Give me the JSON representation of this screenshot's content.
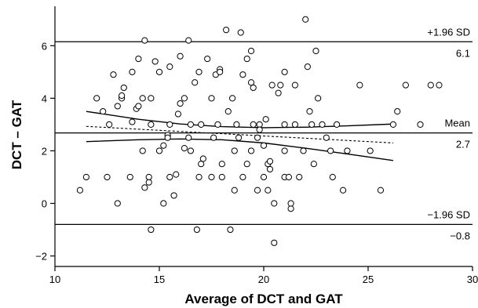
{
  "chart_data": {
    "type": "scatter",
    "title": "",
    "xlabel": "Average of DCT and GAT",
    "ylabel": "DCT – GAT",
    "xlim": [
      10,
      30
    ],
    "ylim": [
      -2.4,
      7.5
    ],
    "xticks": [
      10,
      15,
      20,
      25,
      30
    ],
    "yticks": [
      -2,
      0,
      2,
      4,
      6
    ],
    "grid": false,
    "reference_lines": [
      {
        "name": "+1.96 SD",
        "label_above": "+1.96 SD",
        "label_below": "6.1",
        "y": 6.15
      },
      {
        "name": "Mean",
        "label_above": "Mean",
        "label_below": "2.7",
        "y": 2.68
      },
      {
        "name": "-1.96 SD",
        "label_above": "−1.96 SD",
        "label_below": "−0.8",
        "y": -0.8
      }
    ],
    "regression_line": {
      "x": [
        11.5,
        26.2
      ],
      "y": [
        2.93,
        2.3
      ]
    },
    "confidence_band": {
      "upper": {
        "x": [
          11.5,
          14,
          16,
          18,
          20,
          22,
          24,
          26.2
        ],
        "y": [
          3.5,
          3.2,
          3.02,
          2.92,
          2.88,
          2.9,
          2.95,
          3.02
        ]
      },
      "lower": {
        "x": [
          11.5,
          14,
          16,
          18,
          20,
          22,
          24,
          26.2
        ],
        "y": [
          2.35,
          2.42,
          2.45,
          2.42,
          2.3,
          2.1,
          1.88,
          1.63
        ]
      }
    },
    "points": [
      {
        "x": 11.2,
        "y": 0.5
      },
      {
        "x": 11.5,
        "y": 1.0
      },
      {
        "x": 12.0,
        "y": 4.0
      },
      {
        "x": 12.3,
        "y": 3.5
      },
      {
        "x": 12.5,
        "y": 1.0
      },
      {
        "x": 12.6,
        "y": 3.0
      },
      {
        "x": 12.8,
        "y": 4.9
      },
      {
        "x": 13.0,
        "y": 3.7
      },
      {
        "x": 13.0,
        "y": 0.0
      },
      {
        "x": 13.2,
        "y": 4.0
      },
      {
        "x": 13.2,
        "y": 4.1
      },
      {
        "x": 13.3,
        "y": 4.4
      },
      {
        "x": 13.6,
        "y": 1.0
      },
      {
        "x": 13.7,
        "y": 5.0
      },
      {
        "x": 13.7,
        "y": 3.1
      },
      {
        "x": 13.9,
        "y": 3.6
      },
      {
        "x": 14.0,
        "y": 5.5
      },
      {
        "x": 14.0,
        "y": 3.7
      },
      {
        "x": 14.2,
        "y": 2.0
      },
      {
        "x": 14.2,
        "y": 4.0
      },
      {
        "x": 14.3,
        "y": 6.2
      },
      {
        "x": 14.3,
        "y": 0.6
      },
      {
        "x": 14.5,
        "y": 1.0
      },
      {
        "x": 14.5,
        "y": 0.8
      },
      {
        "x": 14.6,
        "y": 3.0
      },
      {
        "x": 14.6,
        "y": 4.0
      },
      {
        "x": 14.6,
        "y": -1.0
      },
      {
        "x": 14.8,
        "y": 5.4
      },
      {
        "x": 15.0,
        "y": 5.0
      },
      {
        "x": 15.0,
        "y": 2.0
      },
      {
        "x": 15.2,
        "y": 0.0
      },
      {
        "x": 15.2,
        "y": 2.2
      },
      {
        "x": 15.4,
        "y": 2.6
      },
      {
        "x": 15.4,
        "y": 2.5
      },
      {
        "x": 15.5,
        "y": 5.2
      },
      {
        "x": 15.5,
        "y": 3.0
      },
      {
        "x": 15.5,
        "y": 1.0
      },
      {
        "x": 15.7,
        "y": 0.3
      },
      {
        "x": 15.8,
        "y": 1.1
      },
      {
        "x": 15.9,
        "y": 3.4
      },
      {
        "x": 16.0,
        "y": 3.8
      },
      {
        "x": 16.0,
        "y": 5.6
      },
      {
        "x": 16.2,
        "y": 4.0
      },
      {
        "x": 16.2,
        "y": 2.1
      },
      {
        "x": 16.4,
        "y": 6.2
      },
      {
        "x": 16.4,
        "y": 2.5
      },
      {
        "x": 16.5,
        "y": 3.0
      },
      {
        "x": 16.5,
        "y": 2.0
      },
      {
        "x": 16.7,
        "y": 4.6
      },
      {
        "x": 16.9,
        "y": 5.0
      },
      {
        "x": 16.9,
        "y": 1.0
      },
      {
        "x": 17.0,
        "y": 1.5
      },
      {
        "x": 17.0,
        "y": 3.0
      },
      {
        "x": 17.1,
        "y": 1.7
      },
      {
        "x": 17.3,
        "y": 5.5
      },
      {
        "x": 17.5,
        "y": 4.0
      },
      {
        "x": 17.5,
        "y": 1.0
      },
      {
        "x": 17.6,
        "y": 2.5
      },
      {
        "x": 17.7,
        "y": 4.9
      },
      {
        "x": 17.8,
        "y": 3.0
      },
      {
        "x": 17.9,
        "y": 5.1
      },
      {
        "x": 17.9,
        "y": 5.0
      },
      {
        "x": 18.0,
        "y": 1.0
      },
      {
        "x": 18.0,
        "y": 1.5
      },
      {
        "x": 18.2,
        "y": 6.6
      },
      {
        "x": 18.3,
        "y": 3.5
      },
      {
        "x": 18.5,
        "y": 4.0
      },
      {
        "x": 18.6,
        "y": 2.0
      },
      {
        "x": 18.6,
        "y": 0.5
      },
      {
        "x": 18.7,
        "y": 3.0
      },
      {
        "x": 18.8,
        "y": 2.5
      },
      {
        "x": 18.9,
        "y": 6.5
      },
      {
        "x": 19.0,
        "y": 4.9
      },
      {
        "x": 19.0,
        "y": 1.0
      },
      {
        "x": 19.2,
        "y": 5.5
      },
      {
        "x": 19.2,
        "y": 1.5
      },
      {
        "x": 19.4,
        "y": 2.0
      },
      {
        "x": 19.4,
        "y": 5.8
      },
      {
        "x": 19.4,
        "y": 4.6
      },
      {
        "x": 19.5,
        "y": 4.4
      },
      {
        "x": 19.5,
        "y": 3.0
      },
      {
        "x": 19.7,
        "y": 2.5
      },
      {
        "x": 19.7,
        "y": 0.5
      },
      {
        "x": 19.8,
        "y": 3.0
      },
      {
        "x": 19.8,
        "y": 2.8
      },
      {
        "x": 20.0,
        "y": 1.0
      },
      {
        "x": 20.0,
        "y": 2.2
      },
      {
        "x": 20.1,
        "y": 3.2
      },
      {
        "x": 20.2,
        "y": 0.5
      },
      {
        "x": 20.2,
        "y": 1.5
      },
      {
        "x": 20.3,
        "y": 1.3
      },
      {
        "x": 20.3,
        "y": 1.6
      },
      {
        "x": 20.4,
        "y": 4.5
      },
      {
        "x": 20.5,
        "y": 0.0
      },
      {
        "x": 20.7,
        "y": 4.2
      },
      {
        "x": 20.8,
        "y": 4.5
      },
      {
        "x": 21.0,
        "y": 5.0
      },
      {
        "x": 21.0,
        "y": 3.0
      },
      {
        "x": 21.0,
        "y": 2.0
      },
      {
        "x": 21.0,
        "y": 1.0
      },
      {
        "x": 21.2,
        "y": 1.0
      },
      {
        "x": 21.3,
        "y": -0.2
      },
      {
        "x": 21.3,
        "y": 0.0
      },
      {
        "x": 21.5,
        "y": 3.0
      },
      {
        "x": 21.5,
        "y": 4.5
      },
      {
        "x": 21.7,
        "y": 1.0
      },
      {
        "x": 21.9,
        "y": 2.0
      },
      {
        "x": 22.0,
        "y": 7.0
      },
      {
        "x": 22.1,
        "y": 5.2
      },
      {
        "x": 22.2,
        "y": 3.5
      },
      {
        "x": 22.3,
        "y": 3.0
      },
      {
        "x": 22.4,
        "y": 1.5
      },
      {
        "x": 22.5,
        "y": 5.8
      },
      {
        "x": 22.6,
        "y": 4.0
      },
      {
        "x": 22.8,
        "y": 3.0
      },
      {
        "x": 23.0,
        "y": 2.5
      },
      {
        "x": 23.2,
        "y": 2.0
      },
      {
        "x": 23.3,
        "y": 1.0
      },
      {
        "x": 23.5,
        "y": 3.0
      },
      {
        "x": 23.8,
        "y": 0.5
      },
      {
        "x": 24.0,
        "y": 2.0
      },
      {
        "x": 24.6,
        "y": 4.5
      },
      {
        "x": 25.1,
        "y": 2.0
      },
      {
        "x": 25.6,
        "y": 0.5
      },
      {
        "x": 26.2,
        "y": 3.0
      },
      {
        "x": 26.4,
        "y": 3.5
      },
      {
        "x": 26.8,
        "y": 4.5
      },
      {
        "x": 27.5,
        "y": 3.0
      },
      {
        "x": 28.0,
        "y": 4.5
      },
      {
        "x": 28.4,
        "y": 4.5
      },
      {
        "x": 20.5,
        "y": -1.5
      },
      {
        "x": 18.4,
        "y": -1.0
      },
      {
        "x": 16.8,
        "y": -1.0
      }
    ]
  }
}
